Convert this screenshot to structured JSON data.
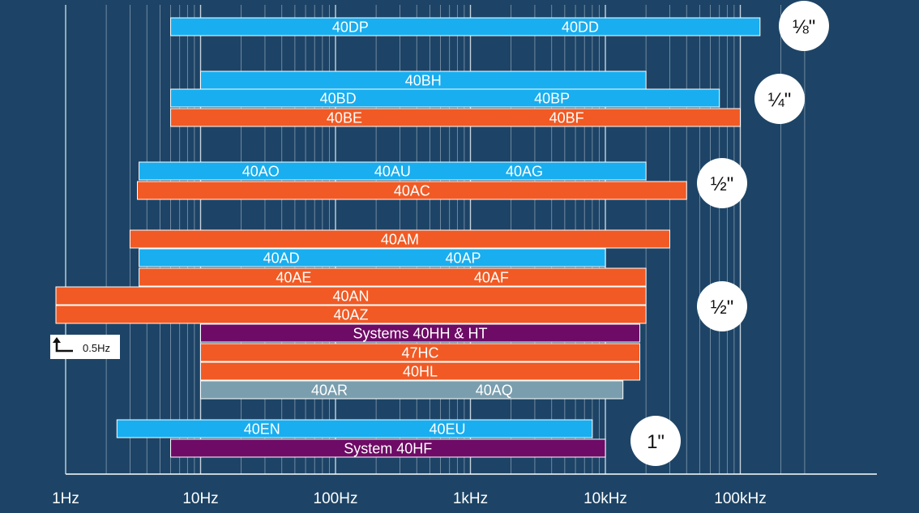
{
  "chart_data": {
    "type": "bar",
    "orientation": "horizontal",
    "x_scale": "log",
    "x_range_hz": [
      1,
      300000
    ],
    "x_ticks": [
      {
        "value": 1,
        "label": "1Hz"
      },
      {
        "value": 10,
        "label": "10Hz"
      },
      {
        "value": 100,
        "label": "100Hz"
      },
      {
        "value": 1000,
        "label": "1kHz"
      },
      {
        "value": 10000,
        "label": "10kHz"
      },
      {
        "value": 100000,
        "label": "100kHz"
      }
    ],
    "grid": true,
    "colors": {
      "background": "#1d4466",
      "blue": "#19aeef",
      "orange": "#f15a24",
      "purple": "#6e0b66",
      "gray": "#7a9eae",
      "gridline": "#d9e2ea",
      "badge": "#ffffff"
    },
    "bars": [
      {
        "labels": [
          "40DP",
          "40DD"
        ],
        "from": 6,
        "to": 140000,
        "color": "blue",
        "row": 0
      },
      {
        "labels": [
          "40BH"
        ],
        "from": 10,
        "to": 20000,
        "color": "blue",
        "row": 1
      },
      {
        "labels": [
          "40BD",
          "40BP"
        ],
        "from": 6,
        "to": 70000,
        "color": "blue",
        "row": 2
      },
      {
        "labels": [
          "40BE",
          "40BF"
        ],
        "from": 6,
        "to": 100000,
        "color": "orange",
        "row": 3
      },
      {
        "labels": [
          "40AO",
          "40AU",
          "40AG"
        ],
        "from": 3.5,
        "to": 20000,
        "color": "blue",
        "row": 4
      },
      {
        "labels": [
          "40AC"
        ],
        "from": 3.4,
        "to": 40000,
        "color": "orange",
        "row": 5
      },
      {
        "labels": [
          "40AM"
        ],
        "from": 3,
        "to": 30000,
        "color": "orange",
        "row": 6
      },
      {
        "labels": [
          "40AD",
          "40AP"
        ],
        "from": 3.5,
        "to": 10000,
        "color": "blue",
        "row": 7
      },
      {
        "labels": [
          "40AE",
          "40AF"
        ],
        "from": 3.5,
        "to": 20000,
        "color": "orange",
        "row": 8
      },
      {
        "labels": [
          "40AN"
        ],
        "from": 0.5,
        "to": 20000,
        "color": "orange",
        "row": 9
      },
      {
        "labels": [
          "40AZ"
        ],
        "from": 0.5,
        "to": 20000,
        "color": "orange",
        "row": 10
      },
      {
        "labels": [
          "Systems 40HH & HT"
        ],
        "from": 10,
        "to": 18000,
        "color": "purple",
        "row": 11
      },
      {
        "labels": [
          "47HC"
        ],
        "from": 10,
        "to": 18000,
        "color": "orange",
        "row": 12
      },
      {
        "labels": [
          "40HL"
        ],
        "from": 10,
        "to": 18000,
        "color": "orange",
        "row": 13
      },
      {
        "labels": [
          "40AR",
          "40AQ"
        ],
        "from": 10,
        "to": 13500,
        "color": "gray",
        "row": 14
      },
      {
        "labels": [
          "40EN",
          "40EU"
        ],
        "from": 2.4,
        "to": 8000,
        "color": "blue",
        "row": 15
      },
      {
        "labels": [
          "System 40HF"
        ],
        "from": 6,
        "to": 10000,
        "color": "purple",
        "row": 16
      }
    ],
    "size_groups": [
      {
        "label": "⅛\"",
        "rows": [
          0
        ]
      },
      {
        "label": "¼\"",
        "rows": [
          1,
          2,
          3
        ]
      },
      {
        "label": "½\"",
        "rows": [
          4,
          5
        ]
      },
      {
        "label": "½\"",
        "rows": [
          6,
          7,
          8,
          9,
          10,
          11,
          12,
          13,
          14
        ]
      },
      {
        "label": "1\"",
        "rows": [
          15,
          16
        ]
      }
    ],
    "annotation": {
      "text": "0.5Hz",
      "icon": "corner-arrow-icon"
    }
  }
}
